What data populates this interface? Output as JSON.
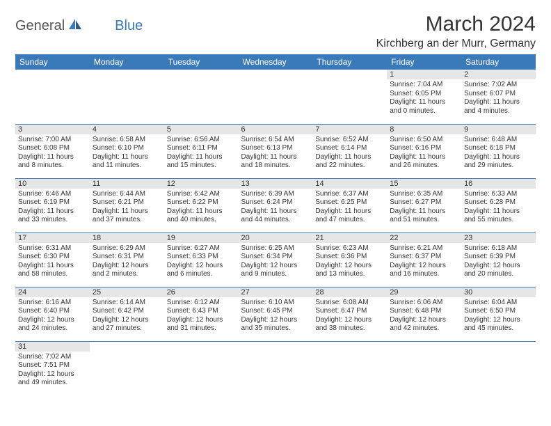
{
  "logo": {
    "text1": "General",
    "text2": "Blue"
  },
  "title": "March 2024",
  "location": "Kirchberg an der Murr, Germany",
  "colors": {
    "header_bg": "#3a7ab8",
    "daynum_bg": "#e6e6e6",
    "row_border": "#3a7ab8",
    "text": "#333333"
  },
  "weekdays": [
    "Sunday",
    "Monday",
    "Tuesday",
    "Wednesday",
    "Thursday",
    "Friday",
    "Saturday"
  ],
  "days": {
    "1": {
      "sunrise": "Sunrise: 7:04 AM",
      "sunset": "Sunset: 6:05 PM",
      "daylight1": "Daylight: 11 hours",
      "daylight2": "and 0 minutes."
    },
    "2": {
      "sunrise": "Sunrise: 7:02 AM",
      "sunset": "Sunset: 6:07 PM",
      "daylight1": "Daylight: 11 hours",
      "daylight2": "and 4 minutes."
    },
    "3": {
      "sunrise": "Sunrise: 7:00 AM",
      "sunset": "Sunset: 6:08 PM",
      "daylight1": "Daylight: 11 hours",
      "daylight2": "and 8 minutes."
    },
    "4": {
      "sunrise": "Sunrise: 6:58 AM",
      "sunset": "Sunset: 6:10 PM",
      "daylight1": "Daylight: 11 hours",
      "daylight2": "and 11 minutes."
    },
    "5": {
      "sunrise": "Sunrise: 6:56 AM",
      "sunset": "Sunset: 6:11 PM",
      "daylight1": "Daylight: 11 hours",
      "daylight2": "and 15 minutes."
    },
    "6": {
      "sunrise": "Sunrise: 6:54 AM",
      "sunset": "Sunset: 6:13 PM",
      "daylight1": "Daylight: 11 hours",
      "daylight2": "and 18 minutes."
    },
    "7": {
      "sunrise": "Sunrise: 6:52 AM",
      "sunset": "Sunset: 6:14 PM",
      "daylight1": "Daylight: 11 hours",
      "daylight2": "and 22 minutes."
    },
    "8": {
      "sunrise": "Sunrise: 6:50 AM",
      "sunset": "Sunset: 6:16 PM",
      "daylight1": "Daylight: 11 hours",
      "daylight2": "and 26 minutes."
    },
    "9": {
      "sunrise": "Sunrise: 6:48 AM",
      "sunset": "Sunset: 6:18 PM",
      "daylight1": "Daylight: 11 hours",
      "daylight2": "and 29 minutes."
    },
    "10": {
      "sunrise": "Sunrise: 6:46 AM",
      "sunset": "Sunset: 6:19 PM",
      "daylight1": "Daylight: 11 hours",
      "daylight2": "and 33 minutes."
    },
    "11": {
      "sunrise": "Sunrise: 6:44 AM",
      "sunset": "Sunset: 6:21 PM",
      "daylight1": "Daylight: 11 hours",
      "daylight2": "and 37 minutes."
    },
    "12": {
      "sunrise": "Sunrise: 6:42 AM",
      "sunset": "Sunset: 6:22 PM",
      "daylight1": "Daylight: 11 hours",
      "daylight2": "and 40 minutes."
    },
    "13": {
      "sunrise": "Sunrise: 6:39 AM",
      "sunset": "Sunset: 6:24 PM",
      "daylight1": "Daylight: 11 hours",
      "daylight2": "and 44 minutes."
    },
    "14": {
      "sunrise": "Sunrise: 6:37 AM",
      "sunset": "Sunset: 6:25 PM",
      "daylight1": "Daylight: 11 hours",
      "daylight2": "and 47 minutes."
    },
    "15": {
      "sunrise": "Sunrise: 6:35 AM",
      "sunset": "Sunset: 6:27 PM",
      "daylight1": "Daylight: 11 hours",
      "daylight2": "and 51 minutes."
    },
    "16": {
      "sunrise": "Sunrise: 6:33 AM",
      "sunset": "Sunset: 6:28 PM",
      "daylight1": "Daylight: 11 hours",
      "daylight2": "and 55 minutes."
    },
    "17": {
      "sunrise": "Sunrise: 6:31 AM",
      "sunset": "Sunset: 6:30 PM",
      "daylight1": "Daylight: 11 hours",
      "daylight2": "and 58 minutes."
    },
    "18": {
      "sunrise": "Sunrise: 6:29 AM",
      "sunset": "Sunset: 6:31 PM",
      "daylight1": "Daylight: 12 hours",
      "daylight2": "and 2 minutes."
    },
    "19": {
      "sunrise": "Sunrise: 6:27 AM",
      "sunset": "Sunset: 6:33 PM",
      "daylight1": "Daylight: 12 hours",
      "daylight2": "and 6 minutes."
    },
    "20": {
      "sunrise": "Sunrise: 6:25 AM",
      "sunset": "Sunset: 6:34 PM",
      "daylight1": "Daylight: 12 hours",
      "daylight2": "and 9 minutes."
    },
    "21": {
      "sunrise": "Sunrise: 6:23 AM",
      "sunset": "Sunset: 6:36 PM",
      "daylight1": "Daylight: 12 hours",
      "daylight2": "and 13 minutes."
    },
    "22": {
      "sunrise": "Sunrise: 6:21 AM",
      "sunset": "Sunset: 6:37 PM",
      "daylight1": "Daylight: 12 hours",
      "daylight2": "and 16 minutes."
    },
    "23": {
      "sunrise": "Sunrise: 6:18 AM",
      "sunset": "Sunset: 6:39 PM",
      "daylight1": "Daylight: 12 hours",
      "daylight2": "and 20 minutes."
    },
    "24": {
      "sunrise": "Sunrise: 6:16 AM",
      "sunset": "Sunset: 6:40 PM",
      "daylight1": "Daylight: 12 hours",
      "daylight2": "and 24 minutes."
    },
    "25": {
      "sunrise": "Sunrise: 6:14 AM",
      "sunset": "Sunset: 6:42 PM",
      "daylight1": "Daylight: 12 hours",
      "daylight2": "and 27 minutes."
    },
    "26": {
      "sunrise": "Sunrise: 6:12 AM",
      "sunset": "Sunset: 6:43 PM",
      "daylight1": "Daylight: 12 hours",
      "daylight2": "and 31 minutes."
    },
    "27": {
      "sunrise": "Sunrise: 6:10 AM",
      "sunset": "Sunset: 6:45 PM",
      "daylight1": "Daylight: 12 hours",
      "daylight2": "and 35 minutes."
    },
    "28": {
      "sunrise": "Sunrise: 6:08 AM",
      "sunset": "Sunset: 6:47 PM",
      "daylight1": "Daylight: 12 hours",
      "daylight2": "and 38 minutes."
    },
    "29": {
      "sunrise": "Sunrise: 6:06 AM",
      "sunset": "Sunset: 6:48 PM",
      "daylight1": "Daylight: 12 hours",
      "daylight2": "and 42 minutes."
    },
    "30": {
      "sunrise": "Sunrise: 6:04 AM",
      "sunset": "Sunset: 6:50 PM",
      "daylight1": "Daylight: 12 hours",
      "daylight2": "and 45 minutes."
    },
    "31": {
      "sunrise": "Sunrise: 7:02 AM",
      "sunset": "Sunset: 7:51 PM",
      "daylight1": "Daylight: 12 hours",
      "daylight2": "and 49 minutes."
    }
  },
  "daynums": {
    "1": "1",
    "2": "2",
    "3": "3",
    "4": "4",
    "5": "5",
    "6": "6",
    "7": "7",
    "8": "8",
    "9": "9",
    "10": "10",
    "11": "11",
    "12": "12",
    "13": "13",
    "14": "14",
    "15": "15",
    "16": "16",
    "17": "17",
    "18": "18",
    "19": "19",
    "20": "20",
    "21": "21",
    "22": "22",
    "23": "23",
    "24": "24",
    "25": "25",
    "26": "26",
    "27": "27",
    "28": "28",
    "29": "29",
    "30": "30",
    "31": "31"
  }
}
